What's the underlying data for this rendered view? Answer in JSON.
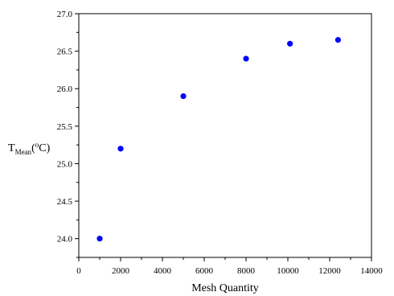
{
  "chart_data": {
    "type": "scatter",
    "title": "",
    "xlabel": "Mesh Quantity",
    "ylabel": {
      "main": "T",
      "subscript": "Mean",
      "unit_open": "(",
      "superscript": "o",
      "unit": "C)"
    },
    "xlim": [
      0,
      14000
    ],
    "ylim": [
      23.75,
      27.0
    ],
    "x_ticks": [
      0,
      2000,
      4000,
      6000,
      8000,
      10000,
      12000,
      14000
    ],
    "x_tick_labels": [
      "0",
      "2000",
      "4000",
      "6000",
      "8000",
      "10000",
      "12000",
      "14000"
    ],
    "y_ticks": [
      24.0,
      24.5,
      25.0,
      25.5,
      26.0,
      26.5,
      27.0
    ],
    "y_tick_labels": [
      "24.0",
      "24.5",
      "25.0",
      "25.5",
      "26.0",
      "26.5",
      "27.0"
    ],
    "grid": false,
    "legend": "none",
    "series": [
      {
        "color": "#0000ff",
        "x": [
          1000,
          2000,
          5000,
          8000,
          10100,
          12400
        ],
        "y": [
          24.0,
          25.2,
          25.9,
          26.4,
          26.6,
          26.65
        ]
      }
    ]
  }
}
